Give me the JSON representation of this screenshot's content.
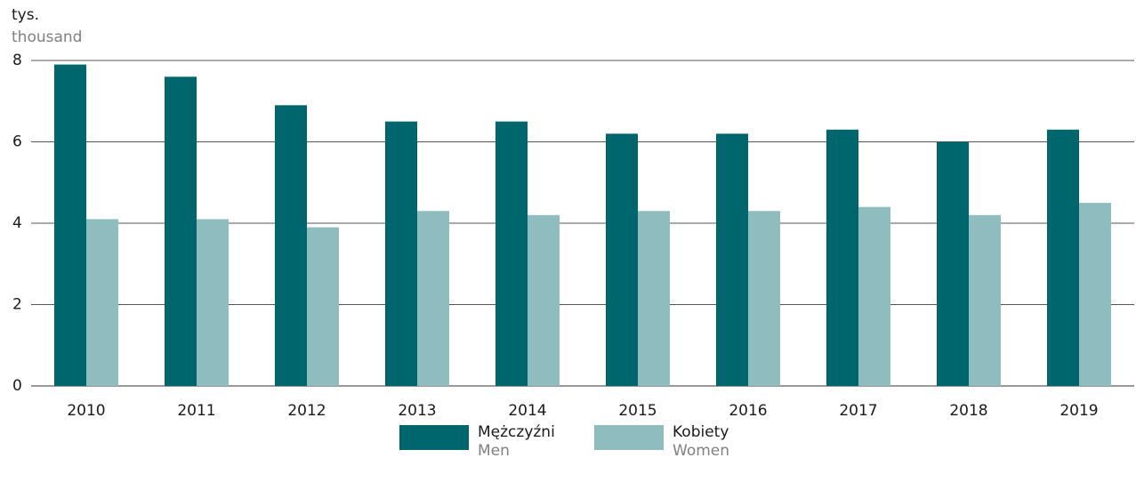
{
  "chart_data": {
    "type": "bar",
    "y_label": "tys.",
    "y_label_en": "thousand",
    "categories": [
      "2010",
      "2011",
      "2012",
      "2013",
      "2014",
      "2015",
      "2016",
      "2017",
      "2018",
      "2019"
    ],
    "series": [
      {
        "name": "Mężczyźni",
        "name_en": "Men",
        "color": "#00666e",
        "values": [
          7.9,
          7.6,
          6.9,
          6.5,
          6.5,
          6.2,
          6.2,
          6.3,
          6.0,
          6.3
        ]
      },
      {
        "name": "Kobiety",
        "name_en": "Women",
        "color": "#8fbcbe",
        "values": [
          4.1,
          4.1,
          3.9,
          4.3,
          4.2,
          4.3,
          4.3,
          4.4,
          4.2,
          4.5
        ]
      }
    ],
    "ylim": [
      0,
      8
    ],
    "yticks": [
      0,
      2,
      4,
      6,
      8
    ],
    "grid": true,
    "legend": "bottom"
  }
}
